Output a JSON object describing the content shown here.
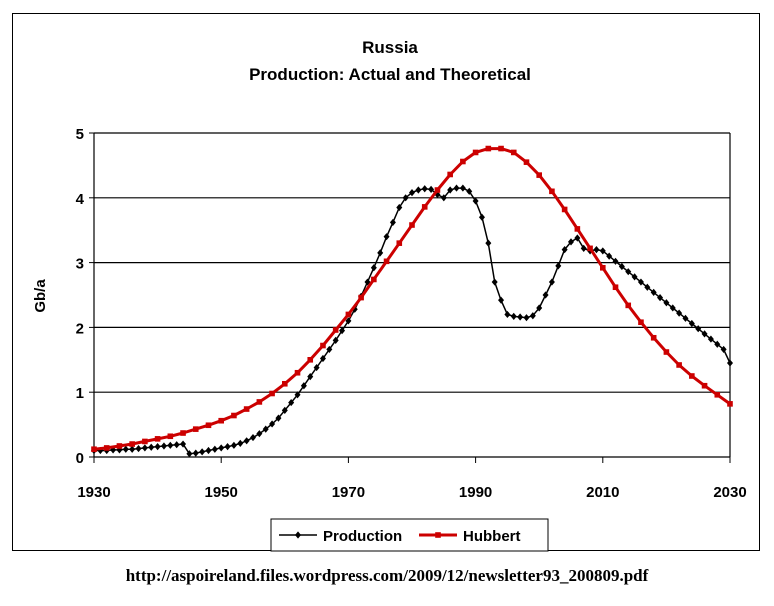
{
  "chart_data": {
    "type": "line",
    "title": "Russia",
    "subtitle": "Production: Actual and Theoretical",
    "xlabel": "",
    "ylabel": "Gb/a",
    "xlim": [
      1930,
      2030
    ],
    "ylim": [
      0,
      5
    ],
    "x_ticks": [
      1930,
      1950,
      1970,
      1990,
      2010,
      2030
    ],
    "y_ticks": [
      0,
      1,
      2,
      3,
      4,
      5
    ],
    "grid": "horizontal",
    "legend_position": "bottom",
    "series": [
      {
        "name": "Production",
        "color": "#000000",
        "marker": "diamond",
        "points": [
          [
            1930,
            0.1
          ],
          [
            1931,
            0.1
          ],
          [
            1932,
            0.1
          ],
          [
            1933,
            0.11
          ],
          [
            1934,
            0.11
          ],
          [
            1935,
            0.12
          ],
          [
            1936,
            0.12
          ],
          [
            1937,
            0.13
          ],
          [
            1938,
            0.14
          ],
          [
            1939,
            0.15
          ],
          [
            1940,
            0.16
          ],
          [
            1941,
            0.17
          ],
          [
            1942,
            0.18
          ],
          [
            1943,
            0.19
          ],
          [
            1944,
            0.2
          ],
          [
            1945,
            0.05
          ],
          [
            1946,
            0.06
          ],
          [
            1947,
            0.08
          ],
          [
            1948,
            0.1
          ],
          [
            1949,
            0.12
          ],
          [
            1950,
            0.14
          ],
          [
            1951,
            0.16
          ],
          [
            1952,
            0.18
          ],
          [
            1953,
            0.21
          ],
          [
            1954,
            0.25
          ],
          [
            1955,
            0.3
          ],
          [
            1956,
            0.36
          ],
          [
            1957,
            0.43
          ],
          [
            1958,
            0.51
          ],
          [
            1959,
            0.6
          ],
          [
            1960,
            0.72
          ],
          [
            1961,
            0.84
          ],
          [
            1962,
            0.96
          ],
          [
            1963,
            1.1
          ],
          [
            1964,
            1.24
          ],
          [
            1965,
            1.38
          ],
          [
            1966,
            1.52
          ],
          [
            1967,
            1.66
          ],
          [
            1968,
            1.8
          ],
          [
            1969,
            1.95
          ],
          [
            1970,
            2.1
          ],
          [
            1971,
            2.28
          ],
          [
            1972,
            2.48
          ],
          [
            1973,
            2.7
          ],
          [
            1974,
            2.92
          ],
          [
            1975,
            3.15
          ],
          [
            1976,
            3.4
          ],
          [
            1977,
            3.62
          ],
          [
            1978,
            3.85
          ],
          [
            1979,
            4.0
          ],
          [
            1980,
            4.08
          ],
          [
            1981,
            4.12
          ],
          [
            1982,
            4.14
          ],
          [
            1983,
            4.13
          ],
          [
            1984,
            4.05
          ],
          [
            1985,
            4.0
          ],
          [
            1986,
            4.12
          ],
          [
            1987,
            4.15
          ],
          [
            1988,
            4.15
          ],
          [
            1989,
            4.1
          ],
          [
            1990,
            3.95
          ],
          [
            1991,
            3.7
          ],
          [
            1992,
            3.3
          ],
          [
            1993,
            2.7
          ],
          [
            1994,
            2.42
          ],
          [
            1995,
            2.2
          ],
          [
            1996,
            2.17
          ],
          [
            1997,
            2.16
          ],
          [
            1998,
            2.15
          ],
          [
            1999,
            2.18
          ],
          [
            2000,
            2.3
          ],
          [
            2001,
            2.5
          ],
          [
            2002,
            2.7
          ],
          [
            2003,
            2.95
          ],
          [
            2004,
            3.2
          ],
          [
            2005,
            3.32
          ],
          [
            2006,
            3.38
          ],
          [
            2007,
            3.22
          ],
          [
            2008,
            3.18
          ],
          [
            2009,
            3.2
          ],
          [
            2010,
            3.18
          ],
          [
            2011,
            3.1
          ],
          [
            2012,
            3.02
          ],
          [
            2013,
            2.94
          ],
          [
            2014,
            2.86
          ],
          [
            2015,
            2.78
          ],
          [
            2016,
            2.7
          ],
          [
            2017,
            2.62
          ],
          [
            2018,
            2.54
          ],
          [
            2019,
            2.46
          ],
          [
            2020,
            2.38
          ],
          [
            2021,
            2.3
          ],
          [
            2022,
            2.22
          ],
          [
            2023,
            2.14
          ],
          [
            2024,
            2.06
          ],
          [
            2025,
            1.98
          ],
          [
            2026,
            1.9
          ],
          [
            2027,
            1.82
          ],
          [
            2028,
            1.74
          ],
          [
            2029,
            1.66
          ],
          [
            2030,
            1.45
          ]
        ]
      },
      {
        "name": "Hubbert",
        "color": "#cc0000",
        "marker": "square",
        "points": [
          [
            1930,
            0.12
          ],
          [
            1932,
            0.14
          ],
          [
            1934,
            0.17
          ],
          [
            1936,
            0.2
          ],
          [
            1938,
            0.24
          ],
          [
            1940,
            0.28
          ],
          [
            1942,
            0.32
          ],
          [
            1944,
            0.37
          ],
          [
            1946,
            0.43
          ],
          [
            1948,
            0.49
          ],
          [
            1950,
            0.56
          ],
          [
            1952,
            0.64
          ],
          [
            1954,
            0.74
          ],
          [
            1956,
            0.85
          ],
          [
            1958,
            0.98
          ],
          [
            1960,
            1.13
          ],
          [
            1962,
            1.3
          ],
          [
            1964,
            1.5
          ],
          [
            1966,
            1.72
          ],
          [
            1968,
            1.96
          ],
          [
            1970,
            2.2
          ],
          [
            1972,
            2.46
          ],
          [
            1974,
            2.74
          ],
          [
            1976,
            3.02
          ],
          [
            1978,
            3.3
          ],
          [
            1980,
            3.58
          ],
          [
            1982,
            3.86
          ],
          [
            1984,
            4.12
          ],
          [
            1986,
            4.36
          ],
          [
            1988,
            4.56
          ],
          [
            1990,
            4.7
          ],
          [
            1992,
            4.76
          ],
          [
            1994,
            4.76
          ],
          [
            1996,
            4.7
          ],
          [
            1998,
            4.55
          ],
          [
            2000,
            4.35
          ],
          [
            2002,
            4.1
          ],
          [
            2004,
            3.82
          ],
          [
            2006,
            3.52
          ],
          [
            2008,
            3.22
          ],
          [
            2010,
            2.92
          ],
          [
            2012,
            2.62
          ],
          [
            2014,
            2.34
          ],
          [
            2016,
            2.08
          ],
          [
            2018,
            1.84
          ],
          [
            2020,
            1.62
          ],
          [
            2022,
            1.42
          ],
          [
            2024,
            1.25
          ],
          [
            2026,
            1.1
          ],
          [
            2028,
            0.96
          ],
          [
            2030,
            0.82
          ]
        ]
      }
    ]
  },
  "footer": {
    "source_url": "http://aspoireland.files.wordpress.com/2009/12/newsletter93_200809.pdf"
  }
}
